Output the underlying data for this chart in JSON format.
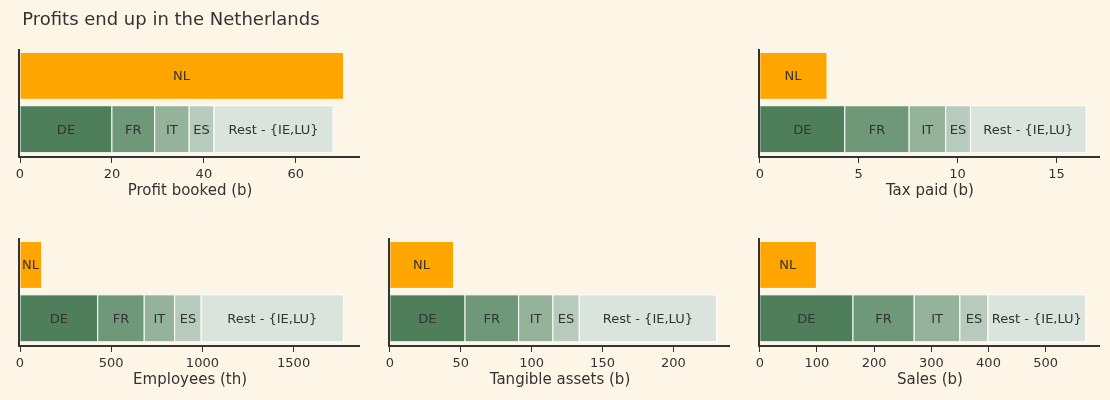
{
  "chart_data": [
    {
      "type": "bar",
      "title": "Profits end up in the Netherlands",
      "orientation": "horizontal",
      "stacked": true,
      "categories": [
        null,
        null
      ],
      "xlabel": "Profit booked (b)",
      "xlim": [
        0,
        74
      ],
      "xticks": [
        0,
        20,
        40,
        60
      ],
      "grid": false,
      "tick_labels": "x",
      "series": [
        {
          "name": "NL",
          "color": "#ffa500",
          "values": [
            70.4,
            null
          ]
        },
        {
          "name": "DE",
          "color": "#4e7f5a",
          "values": [
            null,
            20
          ]
        },
        {
          "name": "FR",
          "color": "#6f9878",
          "values": [
            null,
            9.3
          ]
        },
        {
          "name": "IT",
          "color": "#94b39a",
          "values": [
            null,
            7.5
          ]
        },
        {
          "name": "ES",
          "color": "#b6cbbb",
          "values": [
            null,
            5.4
          ]
        },
        {
          "name": "Rest - {IE,LU}",
          "color": "#dae4dc",
          "values": [
            null,
            25.9
          ]
        }
      ]
    },
    {
      "type": "bar",
      "orientation": "horizontal",
      "stacked": true,
      "categories": [
        null,
        null
      ],
      "xlabel": "Tax paid (b)",
      "xlim": [
        0,
        17.2
      ],
      "xticks": [
        0,
        5,
        10,
        15
      ],
      "grid": false,
      "tick_labels": "x",
      "series": [
        {
          "name": "NL",
          "color": "#ffa500",
          "values": [
            3.4,
            null
          ]
        },
        {
          "name": "DE",
          "color": "#4e7f5a",
          "values": [
            null,
            4.3
          ]
        },
        {
          "name": "FR",
          "color": "#6f9878",
          "values": [
            null,
            3.25
          ]
        },
        {
          "name": "IT",
          "color": "#94b39a",
          "values": [
            null,
            1.85
          ]
        },
        {
          "name": "ES",
          "color": "#b6cbbb",
          "values": [
            null,
            1.25
          ]
        },
        {
          "name": "Rest - {IE,LU}",
          "color": "#dae4dc",
          "values": [
            null,
            5.85
          ]
        }
      ]
    },
    {
      "type": "bar",
      "orientation": "horizontal",
      "stacked": true,
      "categories": [
        null,
        null
      ],
      "xlabel": "Employees (th)",
      "xlim": [
        0,
        1865
      ],
      "xticks": [
        0,
        500,
        1000,
        1500
      ],
      "grid": false,
      "tick_labels": "x",
      "series": [
        {
          "name": "NL",
          "color": "#ffa500",
          "values": [
            119,
            null
          ]
        },
        {
          "name": "DE",
          "color": "#4e7f5a",
          "values": [
            null,
            426
          ]
        },
        {
          "name": "FR",
          "color": "#6f9878",
          "values": [
            null,
            255
          ]
        },
        {
          "name": "IT",
          "color": "#94b39a",
          "values": [
            null,
            167
          ]
        },
        {
          "name": "ES",
          "color": "#b6cbbb",
          "values": [
            null,
            145
          ]
        },
        {
          "name": "Rest - {IE,LU}",
          "color": "#dae4dc",
          "values": [
            null,
            780
          ]
        }
      ]
    },
    {
      "type": "bar",
      "orientation": "horizontal",
      "stacked": true,
      "categories": [
        null,
        null
      ],
      "xlabel": "Tangible assets (b)",
      "xlim": [
        0,
        240
      ],
      "xticks": [
        0,
        50,
        100,
        150,
        200
      ],
      "grid": false,
      "tick_labels": "x",
      "series": [
        {
          "name": "NL",
          "color": "#ffa500",
          "values": [
            45,
            null
          ]
        },
        {
          "name": "DE",
          "color": "#4e7f5a",
          "values": [
            null,
            53
          ]
        },
        {
          "name": "FR",
          "color": "#6f9878",
          "values": [
            null,
            37.8
          ]
        },
        {
          "name": "IT",
          "color": "#94b39a",
          "values": [
            null,
            24.2
          ]
        },
        {
          "name": "ES",
          "color": "#b6cbbb",
          "values": [
            null,
            18.6
          ]
        },
        {
          "name": "Rest - {IE,LU}",
          "color": "#dae4dc",
          "values": [
            null,
            96.8
          ]
        }
      ]
    },
    {
      "type": "bar",
      "orientation": "horizontal",
      "stacked": true,
      "categories": [
        null,
        null
      ],
      "xlabel": "Sales (b)",
      "xlim": [
        0,
        595
      ],
      "xticks": [
        0,
        100,
        200,
        300,
        400,
        500
      ],
      "grid": false,
      "tick_labels": "x",
      "series": [
        {
          "name": "NL",
          "color": "#ffa500",
          "values": [
            99,
            null
          ]
        },
        {
          "name": "DE",
          "color": "#4e7f5a",
          "values": [
            null,
            163
          ]
        },
        {
          "name": "FR",
          "color": "#6f9878",
          "values": [
            null,
            107
          ]
        },
        {
          "name": "IT",
          "color": "#94b39a",
          "values": [
            null,
            80
          ]
        },
        {
          "name": "ES",
          "color": "#b6cbbb",
          "values": [
            null,
            49
          ]
        },
        {
          "name": "Rest - {IE,LU}",
          "color": "#dae4dc",
          "values": [
            null,
            171
          ]
        }
      ]
    }
  ]
}
